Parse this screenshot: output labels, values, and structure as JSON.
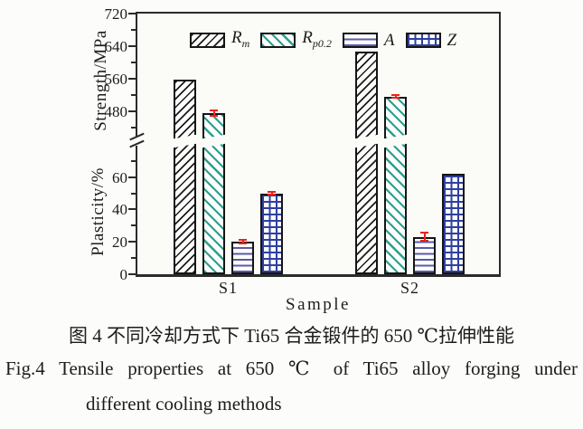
{
  "figure": {
    "caption_zh": "图 4  不同冷却方式下 Ti65 合金锻件的 650 ℃拉伸性能",
    "caption_en_line1": "Fig.4  Tensile properties at 650 ℃ of Ti65 alloy forging under",
    "caption_en_line2": "different cooling methods"
  },
  "chart_data": {
    "type": "bar",
    "categories": [
      "S1",
      "S2"
    ],
    "xlabel": "Sample",
    "broken_y_axis": true,
    "axes": {
      "strength": {
        "label": "Strength/MPa",
        "major_ticks": [
          720,
          640,
          560,
          480
        ],
        "minor_ticks": [
          680,
          600,
          520,
          440
        ],
        "range_shown": [
          440,
          720
        ]
      },
      "plasticity": {
        "label": "Plasticity/%",
        "major_ticks": [
          60,
          40,
          20,
          0
        ],
        "minor_ticks": [
          70,
          50,
          30,
          10
        ],
        "range_shown": [
          0,
          75
        ]
      }
    },
    "series": [
      {
        "key": "Rm",
        "label_main": "R",
        "label_sub": "m",
        "axis": "strength",
        "pattern": "diag-black",
        "values": [
          558,
          628
        ],
        "errors": [
          null,
          null
        ]
      },
      {
        "key": "Rp0.2",
        "label_main": "R",
        "label_sub": "p0.2",
        "axis": "strength",
        "pattern": "diag-teal",
        "values": [
          476,
          517
        ],
        "errors": [
          7,
          3
        ]
      },
      {
        "key": "A",
        "label_main": "A",
        "label_sub": "",
        "axis": "plasticity",
        "pattern": "hlines-blue",
        "values": [
          20,
          23
        ],
        "errors": [
          1,
          2.5
        ]
      },
      {
        "key": "Z",
        "label_main": "Z",
        "label_sub": "",
        "axis": "plasticity",
        "pattern": "grid-blue",
        "values": [
          50,
          62
        ],
        "errors": [
          1,
          null
        ]
      }
    ],
    "legend_position": "top-inside",
    "colors": {
      "rm_hatch": "#1c1c1c",
      "rp02_hatch": "#2aa090",
      "a_lines": "#5a5aad",
      "z_grid": "#2f3f9e",
      "error_bar": "#e8231a",
      "axis": "#2b2b2b"
    }
  }
}
